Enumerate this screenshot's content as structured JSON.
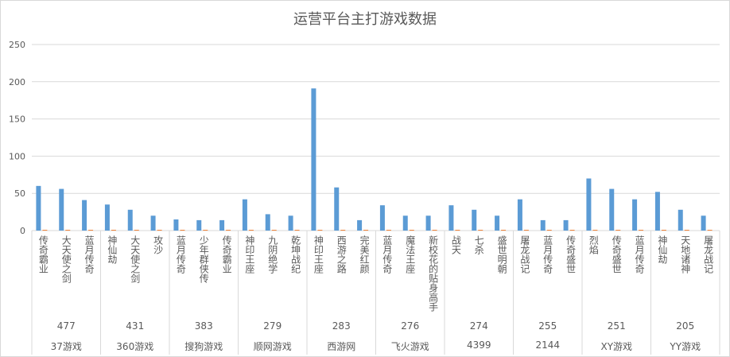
{
  "chart_data": {
    "type": "bar",
    "title": "运营平台主打游戏数据",
    "ylim": [
      0,
      250
    ],
    "yticks": [
      0,
      50,
      100,
      150,
      200,
      250
    ],
    "grid": true,
    "legend": "none",
    "colors": {
      "series1": "#5B9BD5",
      "series2": "#ED7D31"
    },
    "groups": [
      {
        "name": "37游戏",
        "value": "477",
        "categories": [
          "传奇霸业",
          "大天使之剑",
          "蓝月传奇"
        ]
      },
      {
        "name": "360游戏",
        "value": "431",
        "categories": [
          "神仙劫",
          "大天使之剑",
          "攻沙"
        ]
      },
      {
        "name": "搜狗游戏",
        "value": "383",
        "categories": [
          "蓝月传奇",
          "少年群侠传",
          "传奇霸业"
        ]
      },
      {
        "name": "顺网游戏",
        "value": "279",
        "categories": [
          "神印王座",
          "九阴绝学",
          "乾坤战纪"
        ]
      },
      {
        "name": "西游网",
        "value": "283",
        "categories": [
          "神印王座",
          "西游之路",
          "完美红颜"
        ]
      },
      {
        "name": "飞火游戏",
        "value": "276",
        "categories": [
          "蓝月传奇",
          "魔法王座",
          "新校花的贴身高手"
        ]
      },
      {
        "name": "4399",
        "value": "274",
        "categories": [
          "战天",
          "七杀",
          "盛世明朝"
        ]
      },
      {
        "name": "2144",
        "value": "255",
        "categories": [
          "屠龙战记",
          "蓝月传奇",
          "传奇盛世"
        ]
      },
      {
        "name": "XY游戏",
        "value": "251",
        "categories": [
          "烈焰",
          "传奇盛世",
          "蓝月传奇"
        ]
      },
      {
        "name": "YY游戏",
        "value": "205",
        "categories": [
          "神仙劫",
          "天地诸神",
          "屠龙战记"
        ]
      }
    ],
    "series": [
      {
        "values": [
          60,
          56,
          41,
          35,
          28,
          20,
          15,
          14,
          14,
          42,
          22,
          20,
          191,
          58,
          14,
          34,
          20,
          20,
          34,
          28,
          20,
          42,
          14,
          14,
          70,
          56,
          42,
          52,
          28,
          20
        ]
      },
      {
        "values": [
          1,
          1,
          1,
          1,
          1,
          1,
          1,
          1,
          1,
          1,
          1,
          1,
          1,
          1,
          1,
          1,
          1,
          1,
          1,
          1,
          1,
          1,
          1,
          1,
          1,
          1,
          1,
          1,
          1,
          1
        ]
      }
    ]
  }
}
